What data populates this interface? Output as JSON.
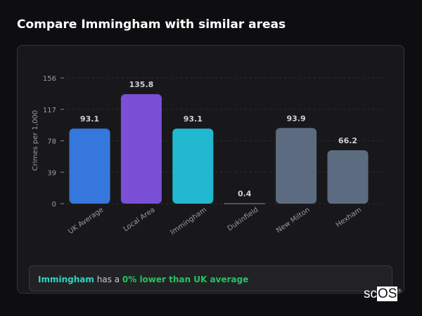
{
  "title": "Compare Immingham with similar areas",
  "chart_data": {
    "type": "bar",
    "ylabel": "Crimes per 1,000",
    "ylim": [
      0,
      156
    ],
    "yticks": [
      0,
      39,
      78,
      117,
      156
    ],
    "grid": true,
    "categories": [
      "UK Average",
      "Local Area",
      "Immingham",
      "Dukinfield",
      "New Milton",
      "Hexham"
    ],
    "values": [
      93.1,
      135.8,
      93.1,
      0.4,
      93.9,
      66.2
    ],
    "labels": [
      "93.1",
      "135.8",
      "93.1",
      "0.4",
      "93.9",
      "66.2"
    ],
    "colors": [
      "#3577dc",
      "#7b4fd6",
      "#22b8cf",
      "#5c6b80",
      "#5c6b80",
      "#5c6b80"
    ]
  },
  "summary": {
    "place": "Immingham",
    "middle": " has a ",
    "comparison": "0% lower than UK average"
  },
  "logo": {
    "text_a": "sc",
    "text_b": "OS",
    "mark": "®"
  }
}
